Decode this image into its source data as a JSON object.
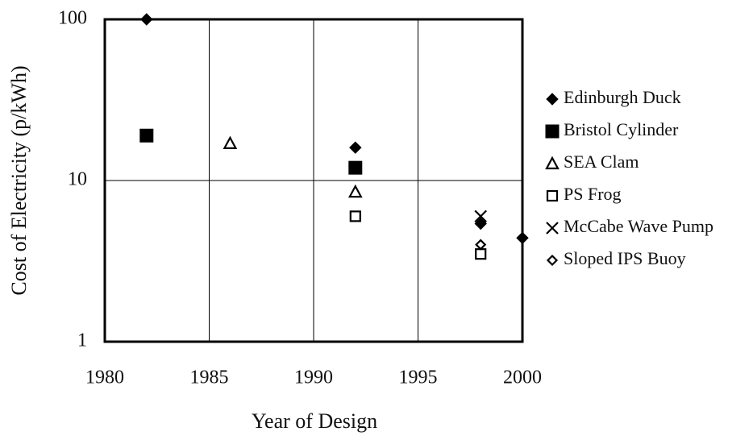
{
  "chart_data": {
    "type": "scatter",
    "x_label": "Year of Design",
    "y_label": "Cost of Electricity (p/kWh)",
    "xlim": [
      1980,
      2000
    ],
    "xticks": [
      1980,
      1985,
      1990,
      1995,
      2000
    ],
    "ylim": [
      1,
      100
    ],
    "yticks": [
      1,
      10,
      100
    ],
    "y_log": true,
    "grid": true,
    "legend": "right",
    "series": [
      {
        "name": "Edinburgh Duck",
        "color": "#000000",
        "marker": "diamond-filled",
        "x": [
          1982,
          1992,
          1998,
          2000
        ],
        "values": [
          100,
          16,
          5.4,
          4.4
        ]
      },
      {
        "name": "Bristol Cylinder",
        "color": "#000000",
        "marker": "square-filled",
        "x": [
          1982,
          1992
        ],
        "values": [
          19,
          12
        ]
      },
      {
        "name": "SEA Clam",
        "color": "#000000",
        "marker": "triangle-open",
        "x": [
          1986,
          1992
        ],
        "values": [
          17,
          8.5
        ]
      },
      {
        "name": "PS Frog",
        "color": "#000000",
        "marker": "square-open",
        "x": [
          1992,
          1998
        ],
        "values": [
          6,
          3.5
        ]
      },
      {
        "name": "McCabe Wave Pump",
        "color": "#000000",
        "marker": "cross",
        "x": [
          1998
        ],
        "values": [
          6
        ]
      },
      {
        "name": "Sloped IPS Buoy",
        "color": "#000000",
        "marker": "diamond-open",
        "x": [
          1998
        ],
        "values": [
          4
        ]
      }
    ]
  }
}
